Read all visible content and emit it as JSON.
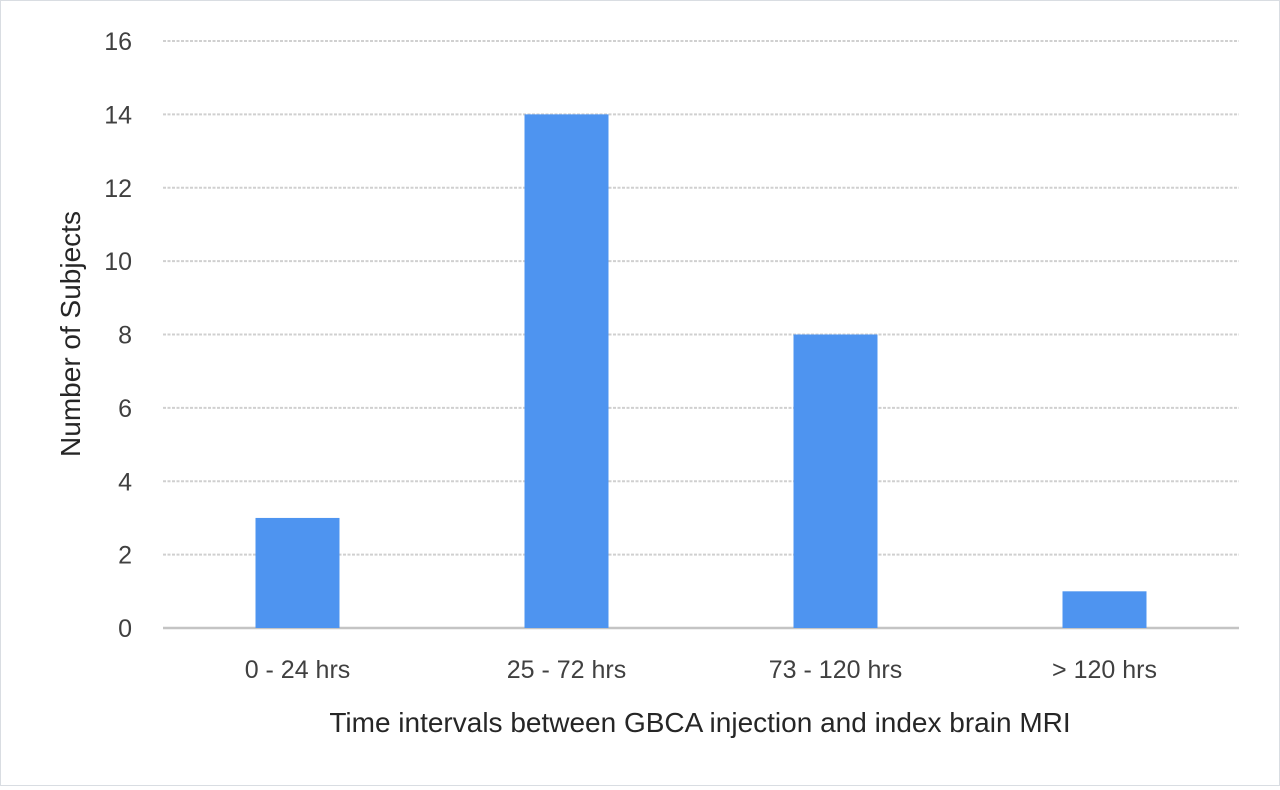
{
  "chart_data": {
    "type": "bar",
    "categories": [
      "0 - 24 hrs",
      "25 - 72 hrs",
      "73 - 120 hrs",
      "> 120 hrs"
    ],
    "values": [
      3,
      14,
      8,
      1
    ],
    "title": "",
    "xlabel": "Time intervals between GBCA injection and index brain MRI",
    "ylabel": "Number of Subjects",
    "ylim": [
      0,
      16
    ],
    "yticks": [
      "0",
      "2",
      "4",
      "6",
      "8",
      "10",
      "12",
      "14",
      "16"
    ],
    "grid": true,
    "legend": "none",
    "bar_color": "#4e94f0",
    "grid_color": "#d0d0d0"
  }
}
